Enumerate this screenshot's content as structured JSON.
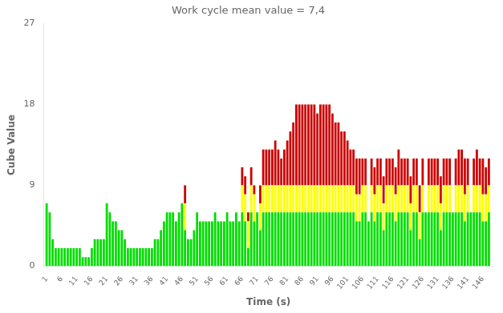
{
  "chart_data": {
    "type": "bar",
    "title": "Work cycle mean value = 7,4",
    "xlabel": "Time (s)",
    "ylabel": "Cube Value",
    "stacked": true,
    "grid": false,
    "xlim": [
      0.0,
      149.5
    ],
    "xticks": [
      1,
      6,
      11,
      16,
      21,
      26,
      31,
      36,
      41,
      46,
      51,
      56,
      61,
      66,
      71,
      76,
      81,
      86,
      91,
      96,
      101,
      106,
      111,
      116,
      121,
      126,
      131,
      136,
      141,
      146
    ],
    "ylim": [
      0,
      27
    ],
    "yticks": [
      0,
      9,
      18,
      27
    ],
    "x": [
      1,
      2,
      3,
      4,
      5,
      6,
      7,
      8,
      9,
      10,
      11,
      12,
      13,
      14,
      15,
      16,
      17,
      18,
      19,
      20,
      21,
      22,
      23,
      24,
      25,
      26,
      27,
      28,
      29,
      30,
      31,
      32,
      33,
      34,
      35,
      36,
      37,
      38,
      39,
      40,
      41,
      42,
      43,
      44,
      45,
      46,
      47,
      48,
      49,
      50,
      51,
      52,
      53,
      54,
      55,
      56,
      57,
      58,
      59,
      60,
      61,
      62,
      63,
      64,
      65,
      66,
      67,
      68,
      69,
      70,
      71,
      72,
      73,
      74,
      75,
      76,
      77,
      78,
      79,
      80,
      81,
      82,
      83,
      84,
      85,
      86,
      87,
      88,
      89,
      90,
      91,
      92,
      93,
      94,
      95,
      96,
      97,
      98,
      99,
      100,
      101,
      102,
      103,
      104,
      105,
      106,
      107,
      108,
      109,
      110,
      111,
      112,
      113,
      114,
      115,
      116,
      117,
      118,
      119,
      120,
      121,
      122,
      123,
      124,
      125,
      126,
      127,
      128,
      129,
      130,
      131,
      132,
      133,
      134,
      135,
      136,
      137,
      138,
      139,
      140,
      141,
      142,
      143,
      144,
      145,
      146,
      147,
      148
    ],
    "series": [
      {
        "color": "#00dd00",
        "values": [
          7,
          6,
          3,
          2,
          2,
          2,
          2,
          2,
          2,
          2,
          2,
          2,
          1,
          1,
          1,
          2,
          3,
          3,
          3,
          3,
          7,
          6,
          5,
          5,
          4,
          4,
          3,
          2,
          2,
          2,
          2,
          2,
          2,
          2,
          2,
          2,
          3,
          3,
          4,
          5,
          6,
          6,
          6,
          5,
          6,
          7,
          4,
          3,
          3,
          4,
          6,
          5,
          5,
          5,
          5,
          5,
          6,
          5,
          5,
          5,
          6,
          5,
          5,
          6,
          5,
          6,
          5,
          2,
          6,
          5,
          6,
          4,
          6,
          6,
          6,
          6,
          6,
          6,
          6,
          6,
          6,
          6,
          6,
          6,
          6,
          6,
          6,
          6,
          6,
          6,
          6,
          6,
          6,
          6,
          6,
          6,
          6,
          6,
          6,
          6,
          6,
          6,
          6,
          5,
          5,
          6,
          6,
          5,
          6,
          5,
          6,
          6,
          4,
          6,
          6,
          6,
          5,
          6,
          6,
          6,
          6,
          4,
          6,
          6,
          3,
          6,
          6,
          6,
          6,
          6,
          6,
          4,
          6,
          6,
          6,
          6,
          6,
          6,
          6,
          5,
          6,
          6,
          6,
          6,
          6,
          5,
          5,
          6
        ]
      },
      {
        "color": "#ffff00",
        "values": [
          0,
          0,
          0,
          0,
          0,
          0,
          0,
          0,
          0,
          0,
          0,
          0,
          0,
          0,
          0,
          0,
          0,
          0,
          0,
          0,
          0,
          0,
          0,
          0,
          0,
          0,
          0,
          0,
          0,
          0,
          0,
          0,
          0,
          0,
          0,
          0,
          0,
          0,
          0,
          0,
          0,
          0,
          0,
          0,
          0,
          0,
          3,
          0,
          0,
          0,
          0,
          0,
          0,
          0,
          0,
          0,
          0,
          0,
          0,
          0,
          0,
          0,
          0,
          0,
          0,
          3,
          3,
          3,
          3,
          3,
          0,
          3,
          3,
          3,
          3,
          3,
          3,
          3,
          3,
          3,
          3,
          3,
          3,
          3,
          3,
          3,
          3,
          3,
          3,
          3,
          3,
          3,
          3,
          3,
          3,
          3,
          3,
          3,
          3,
          3,
          3,
          3,
          3,
          3,
          3,
          3,
          3,
          0,
          3,
          3,
          3,
          3,
          3,
          3,
          3,
          3,
          3,
          3,
          3,
          3,
          3,
          3,
          3,
          3,
          3,
          3,
          0,
          3,
          3,
          3,
          3,
          3,
          3,
          3,
          3,
          0,
          3,
          3,
          3,
          3,
          3,
          0,
          3,
          3,
          3,
          3,
          3,
          3
        ]
      },
      {
        "color": "#cc0000",
        "values": [
          0,
          0,
          0,
          0,
          0,
          0,
          0,
          0,
          0,
          0,
          0,
          0,
          0,
          0,
          0,
          0,
          0,
          0,
          0,
          0,
          0,
          0,
          0,
          0,
          0,
          0,
          0,
          0,
          0,
          0,
          0,
          0,
          0,
          0,
          0,
          0,
          0,
          0,
          0,
          0,
          0,
          0,
          0,
          0,
          0,
          0,
          2,
          0,
          0,
          0,
          0,
          0,
          0,
          0,
          0,
          0,
          0,
          0,
          0,
          0,
          0,
          0,
          0,
          0,
          0,
          2,
          2,
          1,
          2,
          1,
          0,
          2,
          4,
          4,
          4,
          4,
          5,
          4,
          3,
          4,
          5,
          6,
          7,
          9,
          9,
          9,
          9,
          9,
          9,
          9,
          8,
          9,
          9,
          9,
          9,
          8,
          7,
          7,
          6,
          6,
          5,
          4,
          4,
          4,
          4,
          3,
          3,
          0,
          3,
          3,
          3,
          3,
          3,
          3,
          3,
          3,
          3,
          4,
          3,
          3,
          3,
          3,
          3,
          3,
          3,
          3,
          0,
          3,
          3,
          3,
          3,
          3,
          3,
          3,
          3,
          0,
          3,
          4,
          4,
          4,
          3,
          0,
          3,
          4,
          3,
          4,
          3,
          3
        ]
      }
    ]
  }
}
